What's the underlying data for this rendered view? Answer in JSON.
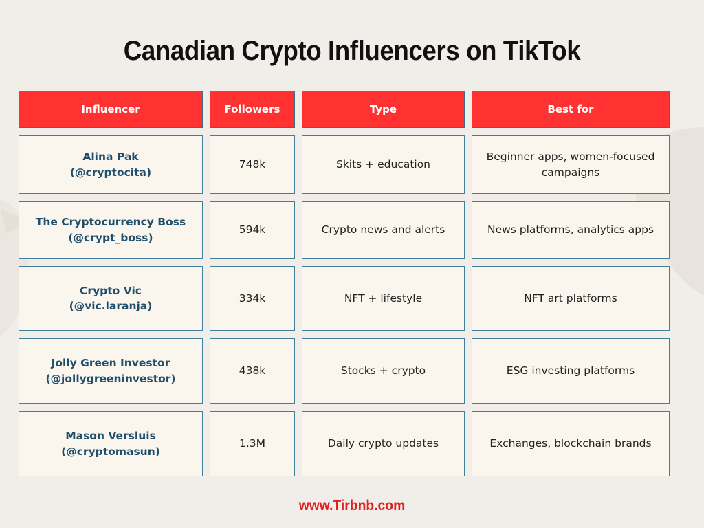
{
  "title": "Canadian Crypto Influencers on TikTok",
  "table": {
    "headers": [
      "Influencer",
      "Followers",
      "Type",
      "Best for"
    ],
    "rows": [
      {
        "name": "Alina Pak",
        "handle": "(@cryptocita)",
        "followers": "748k",
        "type": "Skits + education",
        "best_for": "Beginner apps, women-focused campaigns"
      },
      {
        "name": "The Cryptocurrency Boss",
        "handle": "(@crypt_boss)",
        "followers": "594k",
        "type": "Crypto news and alerts",
        "best_for": "News platforms, analytics apps"
      },
      {
        "name": "Crypto Vic",
        "handle": "(@vic.laranja)",
        "followers": "334k",
        "type": "NFT + lifestyle",
        "best_for": "NFT art platforms"
      },
      {
        "name": "Jolly Green Investor",
        "handle": "(@jollygreeninvestor)",
        "followers": "438k",
        "type": "Stocks + crypto",
        "best_for": "ESG investing platforms"
      },
      {
        "name": "Mason Versluis",
        "handle": "(@cryptomasun)",
        "followers": "1.3M",
        "type": "Daily crypto updates",
        "best_for": "Exchanges, blockchain brands"
      }
    ]
  },
  "footer": "www.Tirbnb.com",
  "colors": {
    "header_bg": "#ff3131",
    "cell_bg": "#faf6ee",
    "name_text": "#1f4f6b",
    "border": "#3f7f99",
    "footer_text": "#e02020",
    "page_bg": "#f1eee9"
  }
}
